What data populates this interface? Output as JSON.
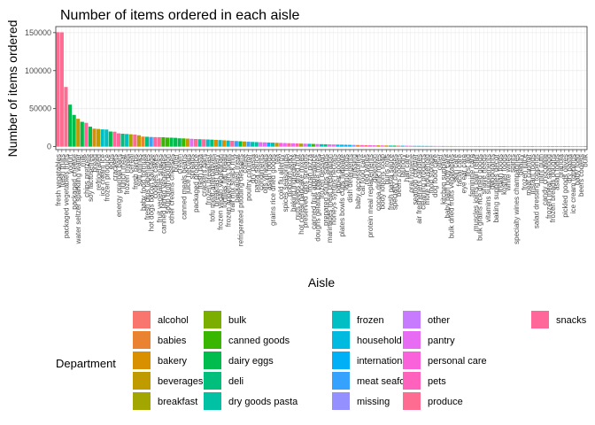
{
  "chart_data": {
    "type": "bar",
    "title": "Number of items ordered in each aisle",
    "xlabel": "Aisle",
    "ylabel": "Number of items ordered",
    "ylim": [
      -4000,
      158000
    ],
    "yticks": [
      0,
      50000,
      100000,
      150000
    ],
    "ytick_labels": [
      "0",
      "50000",
      "100000",
      "150000"
    ],
    "grid": true,
    "legend_position": "bottom",
    "legend_title": "Department",
    "colors": {
      "alcohol": "#F8766D",
      "babies": "#EA8331",
      "bakery": "#D89000",
      "beverages": "#C09B00",
      "breakfast": "#A3A500",
      "bulk": "#7CAE00",
      "canned goods": "#39B600",
      "dairy eggs": "#00BB4E",
      "deli": "#00BF7D",
      "dry goods pasta": "#00C1A3",
      "frozen": "#00BFC4",
      "household": "#00BAE0",
      "international": "#00B0F6",
      "meat seafood": "#35A2FF",
      "missing": "#9590FF",
      "other": "#C77CFF",
      "pantry": "#E76BF3",
      "personal care": "#FA62DB",
      "pets": "#FF62BC",
      "produce": "#FF6C91",
      "snacks": "#FF6699"
    },
    "departments": [
      "alcohol",
      "babies",
      "bakery",
      "beverages",
      "breakfast",
      "bulk",
      "canned goods",
      "dairy eggs",
      "deli",
      "dry goods pasta",
      "frozen",
      "household",
      "international",
      "meat seafood",
      "missing",
      "other",
      "pantry",
      "personal care",
      "pets",
      "produce",
      "snacks"
    ],
    "bars": [
      {
        "aisle": "fresh vegetables",
        "department": "produce",
        "value": 150609
      },
      {
        "aisle": "fresh fruits",
        "department": "produce",
        "value": 150473
      },
      {
        "aisle": "packaged vegetables fruits",
        "department": "produce",
        "value": 78493
      },
      {
        "aisle": "yogurt",
        "department": "dairy eggs",
        "value": 55240
      },
      {
        "aisle": "packaged cheese",
        "department": "dairy eggs",
        "value": 41699
      },
      {
        "aisle": "water seltzer sparkling water",
        "department": "beverages",
        "value": 36617
      },
      {
        "aisle": "milk",
        "department": "dairy eggs",
        "value": 32644
      },
      {
        "aisle": "chips pretzels",
        "department": "snacks",
        "value": 31269
      },
      {
        "aisle": "soy lactosefree",
        "department": "dairy eggs",
        "value": 26240
      },
      {
        "aisle": "bread",
        "department": "bakery",
        "value": 23635
      },
      {
        "aisle": "refrigerated",
        "department": "beverages",
        "value": 23228
      },
      {
        "aisle": "ice cream ice",
        "department": "frozen",
        "value": 22676
      },
      {
        "aisle": "frozen produce",
        "department": "frozen",
        "value": 22453
      },
      {
        "aisle": "eggs",
        "department": "dairy eggs",
        "value": 19875
      },
      {
        "aisle": "crackers",
        "department": "snacks",
        "value": 19592
      },
      {
        "aisle": "energy granola bars",
        "department": "snacks",
        "value": 17449
      },
      {
        "aisle": "lunch meat",
        "department": "deli",
        "value": 16957
      },
      {
        "aisle": "frozen meals",
        "department": "frozen",
        "value": 16588
      },
      {
        "aisle": "cereal",
        "department": "breakfast",
        "value": 16201
      },
      {
        "aisle": "fresh herbs",
        "department": "produce",
        "value": 15807
      },
      {
        "aisle": "soft drinks",
        "department": "beverages",
        "value": 14912
      },
      {
        "aisle": "baby food formula",
        "department": "babies",
        "value": 13198
      },
      {
        "aisle": "fresh dips tapenades",
        "department": "deli",
        "value": 12947
      },
      {
        "aisle": "hot dogs bacon sausage",
        "department": "meat seafood",
        "value": 12631
      },
      {
        "aisle": "cookies cakes",
        "department": "snacks",
        "value": 12477
      },
      {
        "aisle": "fruit vegetable snacks",
        "department": "snacks",
        "value": 12397
      },
      {
        "aisle": "canned jarred vegetables",
        "department": "canned goods",
        "value": 12342
      },
      {
        "aisle": "soup broth bouillon",
        "department": "canned goods",
        "value": 11867
      },
      {
        "aisle": "other creams cheeses",
        "department": "dairy eggs",
        "value": 11759
      },
      {
        "aisle": "butter",
        "department": "dairy eggs",
        "value": 11523
      },
      {
        "aisle": "cream",
        "department": "dairy eggs",
        "value": 10913
      },
      {
        "aisle": "canned meals beans",
        "department": "canned goods",
        "value": 10782
      },
      {
        "aisle": "juice nectars",
        "department": "beverages",
        "value": 10520
      },
      {
        "aisle": "spreads",
        "department": "pantry",
        "value": 10250
      },
      {
        "aisle": "packaged produce",
        "department": "produce",
        "value": 9991
      },
      {
        "aisle": "fresh pasta",
        "department": "dry goods pasta",
        "value": 9754
      },
      {
        "aisle": "crackers bars",
        "department": "snacks",
        "value": 9602
      },
      {
        "aisle": "frozen breakfast",
        "department": "frozen",
        "value": 9412
      },
      {
        "aisle": "tofu meat alternatives",
        "department": "deli",
        "value": 9147
      },
      {
        "aisle": "breakfast bakery",
        "department": "bakery",
        "value": 8877
      },
      {
        "aisle": "frozen vegan vegetarian",
        "department": "frozen",
        "value": 8640
      },
      {
        "aisle": "tortillas flat bread",
        "department": "bakery",
        "value": 8329
      },
      {
        "aisle": "frozen appetizers sides",
        "department": "frozen",
        "value": 7980
      },
      {
        "aisle": "trail mix snack mix",
        "department": "snacks",
        "value": 7650
      },
      {
        "aisle": "packaged meat",
        "department": "meat seafood",
        "value": 7331
      },
      {
        "aisle": "refrigerated pudding desserts",
        "department": "dairy eggs",
        "value": 7013
      },
      {
        "aisle": "coffee",
        "department": "beverages",
        "value": 6706
      },
      {
        "aisle": "poultry counter",
        "department": "meat seafood",
        "value": 6412
      },
      {
        "aisle": "dry pasta",
        "department": "dry goods pasta",
        "value": 6158
      },
      {
        "aisle": "pasta sauce",
        "department": "dry goods pasta",
        "value": 5930
      },
      {
        "aisle": "condiments",
        "department": "pantry",
        "value": 5742
      },
      {
        "aisle": "oils vinegars",
        "department": "pantry",
        "value": 5561
      },
      {
        "aisle": "asian foods",
        "department": "international",
        "value": 5379
      },
      {
        "aisle": "grains rice dried goods",
        "department": "dry goods pasta",
        "value": 5197
      },
      {
        "aisle": "tea",
        "department": "beverages",
        "value": 5016
      },
      {
        "aisle": "cold flu allergy",
        "department": "personal care",
        "value": 4834
      },
      {
        "aisle": "spices seasonings",
        "department": "pantry",
        "value": 4652
      },
      {
        "aisle": "popcorn jerky",
        "department": "snacks",
        "value": 4475
      },
      {
        "aisle": "baking ingredients",
        "department": "pantry",
        "value": 4303
      },
      {
        "aisle": "nuts seeds dried fruit",
        "department": "snacks",
        "value": 4135
      },
      {
        "aisle": "hot cereal pancake mixes",
        "department": "breakfast",
        "value": 3971
      },
      {
        "aisle": "preserved dips spreads",
        "department": "pantry",
        "value": 3811
      },
      {
        "aisle": "frozen pizza",
        "department": "frozen",
        "value": 3655
      },
      {
        "aisle": "canned fruit applesauce",
        "department": "canned goods",
        "value": 3503
      },
      {
        "aisle": "doughs gelatins bake mixes",
        "department": "pantry",
        "value": 3355
      },
      {
        "aisle": "frozen dessert",
        "department": "frozen",
        "value": 3211
      },
      {
        "aisle": "prepared soups salads",
        "department": "deli",
        "value": 3071
      },
      {
        "aisle": "marinades meat preparation",
        "department": "pantry",
        "value": 2935
      },
      {
        "aisle": "honeys syrups nectars",
        "department": "pantry",
        "value": 2803
      },
      {
        "aisle": "paper goods",
        "department": "household",
        "value": 2675
      },
      {
        "aisle": "plates bowls cups flatware",
        "department": "household",
        "value": 2551
      },
      {
        "aisle": "latino foods",
        "department": "international",
        "value": 2431
      },
      {
        "aisle": "dish detergents",
        "department": "household",
        "value": 2315
      },
      {
        "aisle": "missing",
        "department": "missing",
        "value": 2203
      },
      {
        "aisle": "baby accessories",
        "department": "babies",
        "value": 2095
      },
      {
        "aisle": "cat food care",
        "department": "pets",
        "value": 1991
      },
      {
        "aisle": "red wines",
        "department": "alcohol",
        "value": 1891
      },
      {
        "aisle": "protein meal replacements",
        "department": "personal care",
        "value": 1795
      },
      {
        "aisle": "digestion",
        "department": "personal care",
        "value": 1703
      },
      {
        "aisle": "cocoa drink mixes",
        "department": "beverages",
        "value": 1615
      },
      {
        "aisle": "body lotions soap",
        "department": "personal care",
        "value": 1531
      },
      {
        "aisle": "buns rolls",
        "department": "bakery",
        "value": 1451
      },
      {
        "aisle": "fresh pasta sauce",
        "department": "dry goods pasta",
        "value": 1375
      },
      {
        "aisle": "specialty cheeses",
        "department": "dairy eggs",
        "value": 1303
      },
      {
        "aisle": "beers coolers",
        "department": "alcohol",
        "value": 1235
      },
      {
        "aisle": "laundry",
        "department": "household",
        "value": 1171
      },
      {
        "aisle": "hair care",
        "department": "personal care",
        "value": 1111
      },
      {
        "aisle": "oral hygiene",
        "department": "personal care",
        "value": 1055
      },
      {
        "aisle": "seafood counter",
        "department": "meat seafood",
        "value": 1003
      },
      {
        "aisle": "air fresheners candles",
        "department": "household",
        "value": 955
      },
      {
        "aisle": "cleaning products",
        "department": "household",
        "value": 911
      },
      {
        "aisle": "more household",
        "department": "household",
        "value": 871
      },
      {
        "aisle": "food storage",
        "department": "household",
        "value": 835
      },
      {
        "aisle": "dog food care",
        "department": "pets",
        "value": 803
      },
      {
        "aisle": "other",
        "department": "other",
        "value": 775
      },
      {
        "aisle": "kitchen supplies",
        "department": "household",
        "value": 751
      },
      {
        "aisle": "baby bath body care",
        "department": "babies",
        "value": 731
      },
      {
        "aisle": "bulk dried fruits vegetables",
        "department": "bulk",
        "value": 715
      },
      {
        "aisle": "skin care",
        "department": "personal care",
        "value": 703
      },
      {
        "aisle": "facial care",
        "department": "personal care",
        "value": 695
      },
      {
        "aisle": "eye ear care",
        "department": "personal care",
        "value": 690
      },
      {
        "aisle": "first aid",
        "department": "personal care",
        "value": 685
      },
      {
        "aisle": "feminine care",
        "department": "personal care",
        "value": 680
      },
      {
        "aisle": "muscles joints pain relief",
        "department": "personal care",
        "value": 675
      },
      {
        "aisle": "bulk grains rice dried goods",
        "department": "bulk",
        "value": 670
      },
      {
        "aisle": "shave needs",
        "department": "personal care",
        "value": 665
      },
      {
        "aisle": "vitamins supplements",
        "department": "personal care",
        "value": 660
      },
      {
        "aisle": "deodorants",
        "department": "personal care",
        "value": 655
      },
      {
        "aisle": "baking supplies decor",
        "department": "pantry",
        "value": 650
      },
      {
        "aisle": "indian foods",
        "department": "international",
        "value": 645
      },
      {
        "aisle": "kosher foods",
        "department": "international",
        "value": 640
      },
      {
        "aisle": "white wines",
        "department": "alcohol",
        "value": 635
      },
      {
        "aisle": "spirits",
        "department": "alcohol",
        "value": 630
      },
      {
        "aisle": "specialty wines champagnes",
        "department": "alcohol",
        "value": 625
      },
      {
        "aisle": "beauty",
        "department": "personal care",
        "value": 620
      },
      {
        "aisle": "frozen juice",
        "department": "frozen",
        "value": 615
      },
      {
        "aisle": "meat counter",
        "department": "meat seafood",
        "value": 610
      },
      {
        "aisle": "instant foods",
        "department": "dry goods pasta",
        "value": 605
      },
      {
        "aisle": "salad dressing toppings",
        "department": "pantry",
        "value": 600
      },
      {
        "aisle": "mint gum",
        "department": "snacks",
        "value": 595
      },
      {
        "aisle": "candy chocolate",
        "department": "snacks",
        "value": 590
      },
      {
        "aisle": "frozen meat seafood",
        "department": "frozen",
        "value": 585
      },
      {
        "aisle": "frozen breads doughs",
        "department": "frozen",
        "value": 580
      },
      {
        "aisle": "asian foods",
        "department": "international",
        "value": 575
      },
      {
        "aisle": "granola",
        "department": "breakfast",
        "value": 570
      },
      {
        "aisle": "pickled goods olives",
        "department": "canned goods",
        "value": 565
      },
      {
        "aisle": "dry pasta",
        "department": "dry goods pasta",
        "value": 560
      },
      {
        "aisle": "ice cream toppings",
        "department": "snacks",
        "value": 555
      },
      {
        "aisle": "baby food",
        "department": "babies",
        "value": 550
      },
      {
        "aisle": "beers coolers",
        "department": "alcohol",
        "value": 545
      },
      {
        "aisle": "bulk",
        "department": "bulk",
        "value": 540
      }
    ]
  }
}
